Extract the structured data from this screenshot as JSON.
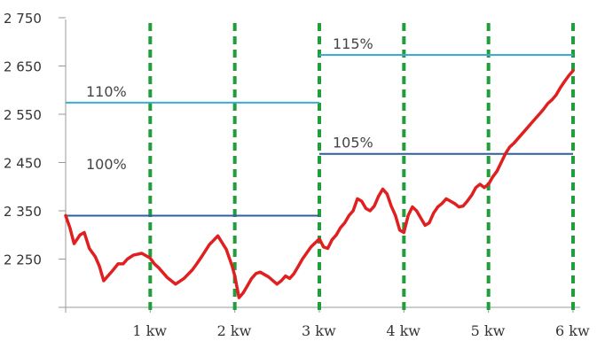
{
  "chart_data": {
    "type": "line",
    "title": "",
    "xlabel": "",
    "ylabel": "",
    "xlim": [
      0,
      6
    ],
    "ylim": [
      2150,
      2750
    ],
    "y_ticks": [
      2750,
      2650,
      2550,
      2450,
      2350,
      2250
    ],
    "y_tick_labels": [
      "2 750",
      "2 650",
      "2 550",
      "2 450",
      "2 350",
      "2 250"
    ],
    "x_ticks": [
      1,
      2,
      3,
      4,
      5,
      6
    ],
    "x_tick_labels": [
      "1 kw",
      "2 kw",
      "3 kw",
      "4 kw",
      "5 kw",
      "6 kw"
    ],
    "grid": false,
    "vertical_markers": {
      "x": [
        1,
        2,
        3,
        4,
        5,
        6
      ],
      "style": "dashed",
      "color": "#1f9e3a"
    },
    "reference_lines": [
      {
        "label": "100%",
        "y": 2340,
        "x_start": 0,
        "x_end": 3,
        "color": "#2c5f9e"
      },
      {
        "label": "110%",
        "y": 2574,
        "x_start": 0,
        "x_end": 3,
        "color": "#3aabdb"
      },
      {
        "label": "105%",
        "y": 2468,
        "x_start": 3,
        "x_end": 6,
        "color": "#2c5f9e"
      },
      {
        "label": "115%",
        "y": 2673,
        "x_start": 3,
        "x_end": 6,
        "color": "#3aabdb"
      }
    ],
    "series": [
      {
        "color": "#e02020",
        "x": [
          0,
          0.05,
          0.1,
          0.17,
          0.22,
          0.28,
          0.35,
          0.4,
          0.45,
          0.55,
          0.62,
          0.68,
          0.73,
          0.8,
          0.9,
          1.0,
          1.05,
          1.1,
          1.2,
          1.3,
          1.4,
          1.5,
          1.55,
          1.62,
          1.7,
          1.8,
          1.9,
          1.97,
          2.0,
          2.05,
          2.1,
          2.15,
          2.2,
          2.25,
          2.3,
          2.4,
          2.5,
          2.55,
          2.6,
          2.65,
          2.7,
          2.75,
          2.8,
          2.9,
          3.0,
          3.05,
          3.1,
          3.15,
          3.2,
          3.25,
          3.3,
          3.35,
          3.4,
          3.45,
          3.5,
          3.55,
          3.6,
          3.65,
          3.7,
          3.75,
          3.8,
          3.85,
          3.9,
          3.95,
          4.0,
          4.05,
          4.1,
          4.15,
          4.2,
          4.25,
          4.3,
          4.35,
          4.4,
          4.45,
          4.5,
          4.55,
          4.6,
          4.65,
          4.7,
          4.75,
          4.8,
          4.85,
          4.9,
          4.95,
          5.0,
          5.05,
          5.1,
          5.15,
          5.2,
          5.25,
          5.3,
          5.35,
          5.4,
          5.45,
          5.5,
          5.55,
          5.6,
          5.65,
          5.7,
          5.75,
          5.8,
          5.85,
          5.9,
          5.95,
          6.0
        ],
        "y": [
          2340,
          2315,
          2282,
          2300,
          2305,
          2272,
          2255,
          2235,
          2205,
          2225,
          2240,
          2240,
          2250,
          2258,
          2262,
          2252,
          2240,
          2232,
          2212,
          2198,
          2210,
          2228,
          2240,
          2258,
          2280,
          2298,
          2270,
          2235,
          2215,
          2170,
          2180,
          2195,
          2210,
          2220,
          2223,
          2213,
          2198,
          2205,
          2215,
          2210,
          2220,
          2235,
          2250,
          2275,
          2292,
          2275,
          2272,
          2290,
          2300,
          2315,
          2325,
          2340,
          2350,
          2375,
          2370,
          2355,
          2350,
          2360,
          2380,
          2395,
          2385,
          2360,
          2340,
          2310,
          2305,
          2340,
          2358,
          2350,
          2335,
          2320,
          2325,
          2345,
          2358,
          2365,
          2375,
          2370,
          2365,
          2358,
          2360,
          2370,
          2382,
          2398,
          2405,
          2398,
          2405,
          2420,
          2432,
          2450,
          2468,
          2482,
          2490,
          2500,
          2510,
          2520,
          2530,
          2540,
          2550,
          2560,
          2572,
          2580,
          2590,
          2605,
          2618,
          2630,
          2640
        ]
      }
    ]
  }
}
